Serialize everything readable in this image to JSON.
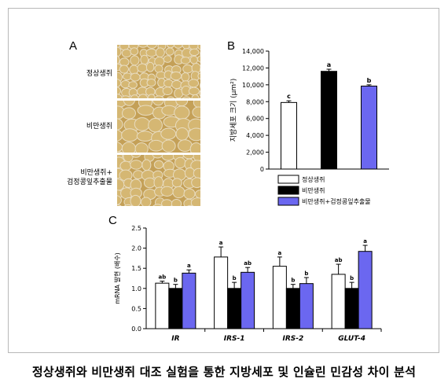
{
  "panels": {
    "a": "A",
    "b": "B",
    "c": "C"
  },
  "micrograph_labels": [
    "정상생쥐",
    "비만생쥐",
    "비만생쥐+",
    "검정콩잎추출물"
  ],
  "caption": "정상생쥐와 비만생쥐 대조 실험을 통한 지방세포 및 인슐린 민감성 차이 분석",
  "colors": {
    "normal": "#ffffff",
    "obese": "#000000",
    "extract": "#6b67f0",
    "micro_bg": "#c4a057",
    "micro_line": "#e8dcc0"
  },
  "chart_data": [
    {
      "type": "bar",
      "panel": "B",
      "ylabel": "지방세포 크기 (μm²)",
      "ylim": [
        0,
        14000
      ],
      "yticks": [
        "0",
        "2,000",
        "4,000",
        "6,000",
        "8,000",
        "10,000",
        "12,000",
        "14,000"
      ],
      "series": [
        {
          "name": "정상생쥐",
          "value": 7900,
          "error": 200,
          "label": "c"
        },
        {
          "name": "비만생쥐",
          "value": 11600,
          "error": 250,
          "label": "a"
        },
        {
          "name": "비만생쥐+검정콩잎추출물",
          "value": 9850,
          "error": 150,
          "label": "b"
        }
      ],
      "legend": [
        "정상생쥐",
        "비만생쥐",
        "비만생쥐+검정콩잎추출물"
      ]
    },
    {
      "type": "bar",
      "panel": "C",
      "ylabel": "mRNA 발현 (배수)",
      "ylim": [
        0,
        2.5
      ],
      "yticks": [
        "0.0",
        "0.5",
        "1.0",
        "1.5",
        "2.0",
        "2.5"
      ],
      "categories": [
        "IR",
        "IRS-1",
        "IRS-2",
        "GLUT-4"
      ],
      "series": [
        {
          "name": "정상생쥐",
          "values": [
            1.13,
            1.78,
            1.55,
            1.35
          ],
          "errors": [
            0.05,
            0.25,
            0.23,
            0.25
          ],
          "labels": [
            "ab",
            "a",
            "a",
            "ab"
          ]
        },
        {
          "name": "비만생쥐",
          "values": [
            1.0,
            1.0,
            1.0,
            1.0
          ],
          "errors": [
            0.1,
            0.15,
            0.1,
            0.15
          ],
          "labels": [
            "b",
            "b",
            "b",
            "b"
          ]
        },
        {
          "name": "비만생쥐+검정콩잎추출물",
          "values": [
            1.38,
            1.4,
            1.12,
            1.92
          ],
          "errors": [
            0.08,
            0.12,
            0.15,
            0.15
          ],
          "labels": [
            "a",
            "ab",
            "b",
            "a"
          ]
        }
      ]
    }
  ]
}
